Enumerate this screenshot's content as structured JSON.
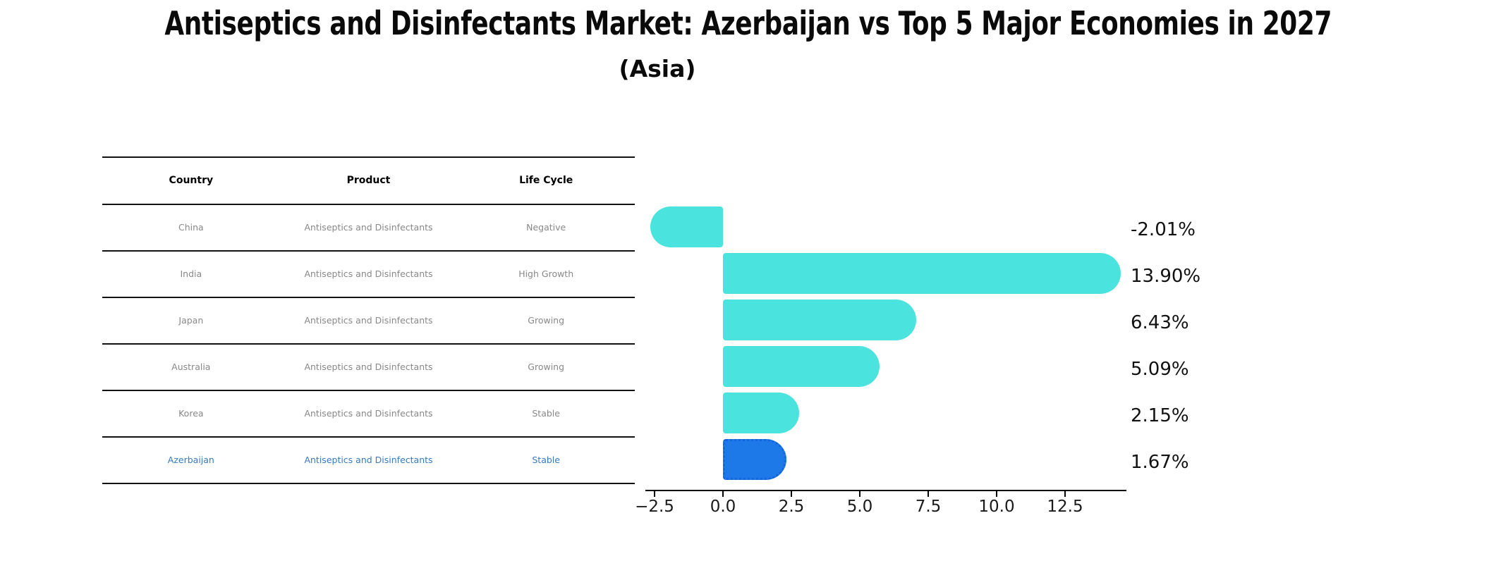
{
  "title": "Antiseptics and Disinfectants Market: Azerbaijan vs Top 5 Major Economies in 2027",
  "subtitle": "(Asia)",
  "table": {
    "headers": [
      "Country",
      "Product",
      "Life Cycle"
    ],
    "rows": [
      {
        "country": "China",
        "product": "Antiseptics and Disinfectants",
        "life_cycle": "Negative",
        "highlighted": false
      },
      {
        "country": "India",
        "product": "Antiseptics and Disinfectants",
        "life_cycle": "High Growth",
        "highlighted": false
      },
      {
        "country": "Japan",
        "product": "Antiseptics and Disinfectants",
        "life_cycle": "Growing",
        "highlighted": false
      },
      {
        "country": "Australia",
        "product": "Antiseptics and Disinfectants",
        "life_cycle": "Growing",
        "highlighted": false
      },
      {
        "country": "Korea",
        "product": "Antiseptics and Disinfectants",
        "life_cycle": "Stable",
        "highlighted": false
      },
      {
        "country": "Azerbaijan",
        "product": "Antiseptics and Disinfectants",
        "life_cycle": "Stable",
        "highlighted": true
      }
    ]
  },
  "chart_data": {
    "type": "bar",
    "orientation": "horizontal",
    "title": "Antiseptics and Disinfectants Market: Azerbaijan vs Top 5 Major Economies in 2027",
    "subtitle": "(Asia)",
    "categories": [
      "China",
      "India",
      "Japan",
      "Australia",
      "Korea",
      "Azerbaijan"
    ],
    "values": [
      -2.01,
      13.9,
      6.43,
      5.09,
      2.15,
      1.67
    ],
    "value_labels": [
      "-2.01%",
      "13.90%",
      "6.43%",
      "5.09%",
      "2.15%",
      "1.67%"
    ],
    "x_tick_labels": [
      "−2.5",
      "0.0",
      "2.5",
      "5.0",
      "7.5",
      "10.0",
      "12.5"
    ],
    "x_tick_values": [
      -2.5,
      0,
      2.5,
      5,
      7.5,
      10,
      12.5
    ],
    "xlim": [
      -2.85,
      14.75
    ],
    "grid": false,
    "legend": false,
    "bar_color": "#4AE3DE",
    "highlight_bar_color": "#1E79E8",
    "highlight_border_color": "#1266DD",
    "highlight_text_color": "#3779C0",
    "highlight_index": 5
  }
}
